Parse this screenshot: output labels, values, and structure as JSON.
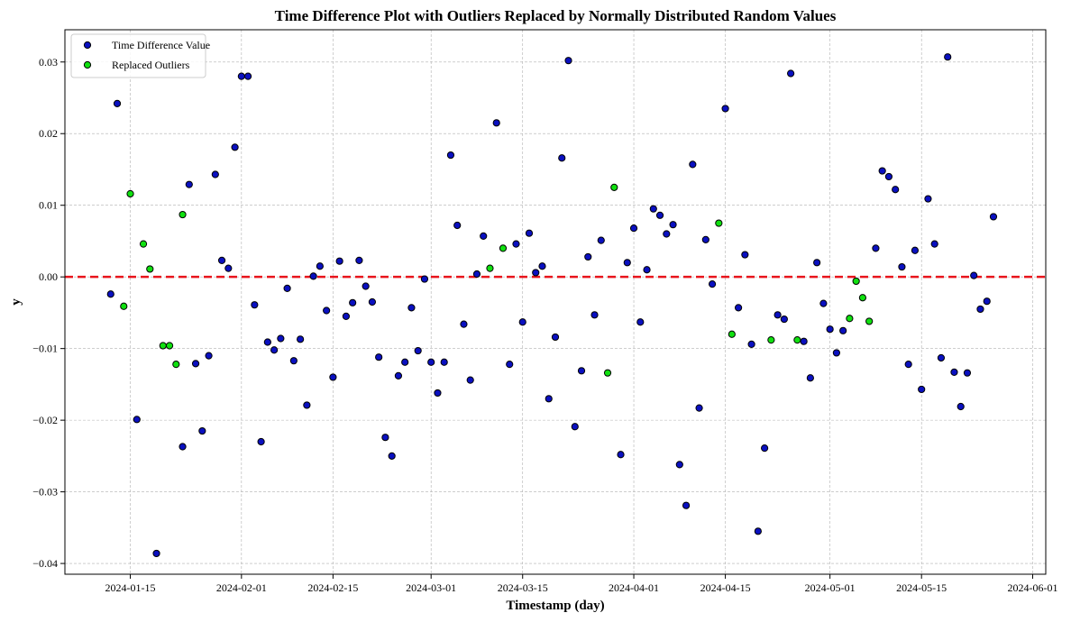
{
  "chart_data": {
    "type": "scatter",
    "title": "Time Difference Plot with Outliers Replaced by Normally Distributed Random Values",
    "xlabel": "Timestamp (day)",
    "ylabel": "y",
    "x_range": [
      "2024-01-05",
      "2024-06-03"
    ],
    "ylim": [
      -0.0415,
      0.0345
    ],
    "x_ticks": [
      "2024-01-15",
      "2024-02-01",
      "2024-02-15",
      "2024-03-01",
      "2024-03-15",
      "2024-04-01",
      "2024-04-15",
      "2024-05-01",
      "2024-05-15",
      "2024-06-01"
    ],
    "y_ticks": [
      -0.04,
      -0.03,
      -0.02,
      -0.01,
      0.0,
      0.01,
      0.02,
      0.03
    ],
    "y_tick_labels": [
      "−0.04",
      "−0.03",
      "−0.02",
      "−0.01",
      "0.00",
      "0.01",
      "0.02",
      "0.03"
    ],
    "grid": true,
    "legend_position": "upper-left",
    "reference_line": {
      "y": 0.0,
      "style": "dashed",
      "color": "#e8141c"
    },
    "series": [
      {
        "name": "Time Difference Value",
        "color": "#0a10c0",
        "edge_color": "#000000",
        "points": [
          [
            "2024-01-12",
            -0.0024
          ],
          [
            "2024-01-13",
            0.0242
          ],
          [
            "2024-01-16",
            -0.0199
          ],
          [
            "2024-01-19",
            -0.0386
          ],
          [
            "2024-01-23",
            -0.0237
          ],
          [
            "2024-01-24",
            0.0129
          ],
          [
            "2024-01-25",
            -0.0121
          ],
          [
            "2024-01-26",
            -0.0215
          ],
          [
            "2024-01-27",
            -0.011
          ],
          [
            "2024-01-28",
            0.0143
          ],
          [
            "2024-01-29",
            0.0023
          ],
          [
            "2024-01-30",
            0.0012
          ],
          [
            "2024-01-31",
            0.0181
          ],
          [
            "2024-02-01",
            0.028
          ],
          [
            "2024-02-02",
            0.028
          ],
          [
            "2024-02-03",
            -0.0039
          ],
          [
            "2024-02-04",
            -0.023
          ],
          [
            "2024-02-05",
            -0.0091
          ],
          [
            "2024-02-06",
            -0.0102
          ],
          [
            "2024-02-07",
            -0.0086
          ],
          [
            "2024-02-08",
            -0.0016
          ],
          [
            "2024-02-09",
            -0.0117
          ],
          [
            "2024-02-10",
            -0.0087
          ],
          [
            "2024-02-11",
            -0.0179
          ],
          [
            "2024-02-12",
            0.0001
          ],
          [
            "2024-02-13",
            0.0015
          ],
          [
            "2024-02-14",
            -0.0047
          ],
          [
            "2024-02-15",
            -0.014
          ],
          [
            "2024-02-16",
            0.0022
          ],
          [
            "2024-02-17",
            -0.0055
          ],
          [
            "2024-02-18",
            -0.0036
          ],
          [
            "2024-02-19",
            0.0023
          ],
          [
            "2024-02-20",
            -0.0013
          ],
          [
            "2024-02-21",
            -0.0035
          ],
          [
            "2024-02-22",
            -0.0112
          ],
          [
            "2024-02-23",
            -0.0224
          ],
          [
            "2024-02-24",
            -0.025
          ],
          [
            "2024-02-25",
            -0.0138
          ],
          [
            "2024-02-26",
            -0.0119
          ],
          [
            "2024-02-27",
            -0.0043
          ],
          [
            "2024-02-28",
            -0.0103
          ],
          [
            "2024-02-29",
            -0.0003
          ],
          [
            "2024-03-01",
            -0.0119
          ],
          [
            "2024-03-02",
            -0.0162
          ],
          [
            "2024-03-03",
            -0.0119
          ],
          [
            "2024-03-04",
            0.017
          ],
          [
            "2024-03-05",
            0.0072
          ],
          [
            "2024-03-06",
            -0.0066
          ],
          [
            "2024-03-07",
            -0.0144
          ],
          [
            "2024-03-08",
            0.0004
          ],
          [
            "2024-03-09",
            0.0057
          ],
          [
            "2024-03-11",
            0.0215
          ],
          [
            "2024-03-13",
            -0.0122
          ],
          [
            "2024-03-14",
            0.0046
          ],
          [
            "2024-03-15",
            -0.0063
          ],
          [
            "2024-03-16",
            0.0061
          ],
          [
            "2024-03-17",
            0.0006
          ],
          [
            "2024-03-18",
            0.0015
          ],
          [
            "2024-03-19",
            -0.017
          ],
          [
            "2024-03-20",
            -0.0084
          ],
          [
            "2024-03-21",
            0.0166
          ],
          [
            "2024-03-22",
            0.0302
          ],
          [
            "2024-03-23",
            -0.0209
          ],
          [
            "2024-03-24",
            -0.0131
          ],
          [
            "2024-03-25",
            0.0028
          ],
          [
            "2024-03-26",
            -0.0053
          ],
          [
            "2024-03-27",
            0.0051
          ],
          [
            "2024-03-30",
            -0.0248
          ],
          [
            "2024-03-31",
            0.002
          ],
          [
            "2024-04-01",
            0.0068
          ],
          [
            "2024-04-02",
            -0.0063
          ],
          [
            "2024-04-03",
            0.001
          ],
          [
            "2024-04-04",
            0.0095
          ],
          [
            "2024-04-05",
            0.0086
          ],
          [
            "2024-04-06",
            0.006
          ],
          [
            "2024-04-07",
            0.0073
          ],
          [
            "2024-04-08",
            -0.0262
          ],
          [
            "2024-04-09",
            -0.0319
          ],
          [
            "2024-04-10",
            0.0157
          ],
          [
            "2024-04-11",
            -0.0183
          ],
          [
            "2024-04-12",
            0.0052
          ],
          [
            "2024-04-13",
            -0.001
          ],
          [
            "2024-04-15",
            0.0235
          ],
          [
            "2024-04-17",
            -0.0043
          ],
          [
            "2024-04-18",
            0.0031
          ],
          [
            "2024-04-19",
            -0.0094
          ],
          [
            "2024-04-20",
            -0.0355
          ],
          [
            "2024-04-21",
            -0.0239
          ],
          [
            "2024-04-23",
            -0.0053
          ],
          [
            "2024-04-24",
            -0.0059
          ],
          [
            "2024-04-25",
            0.0284
          ],
          [
            "2024-04-27",
            -0.009
          ],
          [
            "2024-04-28",
            -0.0141
          ],
          [
            "2024-04-29",
            0.002
          ],
          [
            "2024-04-30",
            -0.0037
          ],
          [
            "2024-05-01",
            -0.0073
          ],
          [
            "2024-05-02",
            -0.0106
          ],
          [
            "2024-05-03",
            -0.0075
          ],
          [
            "2024-05-08",
            0.004
          ],
          [
            "2024-05-09",
            0.0148
          ],
          [
            "2024-05-10",
            0.014
          ],
          [
            "2024-05-11",
            0.0122
          ],
          [
            "2024-05-12",
            0.0014
          ],
          [
            "2024-05-13",
            -0.0122
          ],
          [
            "2024-05-14",
            0.0037
          ],
          [
            "2024-05-15",
            -0.0157
          ],
          [
            "2024-05-16",
            0.0109
          ],
          [
            "2024-05-17",
            0.0046
          ],
          [
            "2024-05-18",
            -0.0113
          ],
          [
            "2024-05-19",
            0.0307
          ],
          [
            "2024-05-20",
            -0.0133
          ],
          [
            "2024-05-21",
            -0.0181
          ],
          [
            "2024-05-22",
            -0.0134
          ],
          [
            "2024-05-23",
            0.0002
          ],
          [
            "2024-05-24",
            -0.0045
          ],
          [
            "2024-05-25",
            -0.0034
          ],
          [
            "2024-05-26",
            0.0084
          ]
        ]
      },
      {
        "name": "Replaced Outliers",
        "color": "#10e010",
        "edge_color": "#000000",
        "points": [
          [
            "2024-01-14",
            -0.0041
          ],
          [
            "2024-01-15",
            0.0116
          ],
          [
            "2024-01-17",
            0.0046
          ],
          [
            "2024-01-18",
            0.0011
          ],
          [
            "2024-01-20",
            -0.0096
          ],
          [
            "2024-01-21",
            -0.0096
          ],
          [
            "2024-01-22",
            -0.0122
          ],
          [
            "2024-01-23",
            0.0087
          ],
          [
            "2024-03-10",
            0.0012
          ],
          [
            "2024-03-12",
            0.004
          ],
          [
            "2024-03-28",
            -0.0134
          ],
          [
            "2024-03-29",
            0.0125
          ],
          [
            "2024-04-14",
            0.0075
          ],
          [
            "2024-04-16",
            -0.008
          ],
          [
            "2024-04-22",
            -0.0088
          ],
          [
            "2024-04-26",
            -0.0088
          ],
          [
            "2024-05-04",
            -0.0058
          ],
          [
            "2024-05-05",
            -0.0006
          ],
          [
            "2024-05-06",
            -0.0029
          ],
          [
            "2024-05-07",
            -0.0062
          ]
        ]
      }
    ]
  }
}
